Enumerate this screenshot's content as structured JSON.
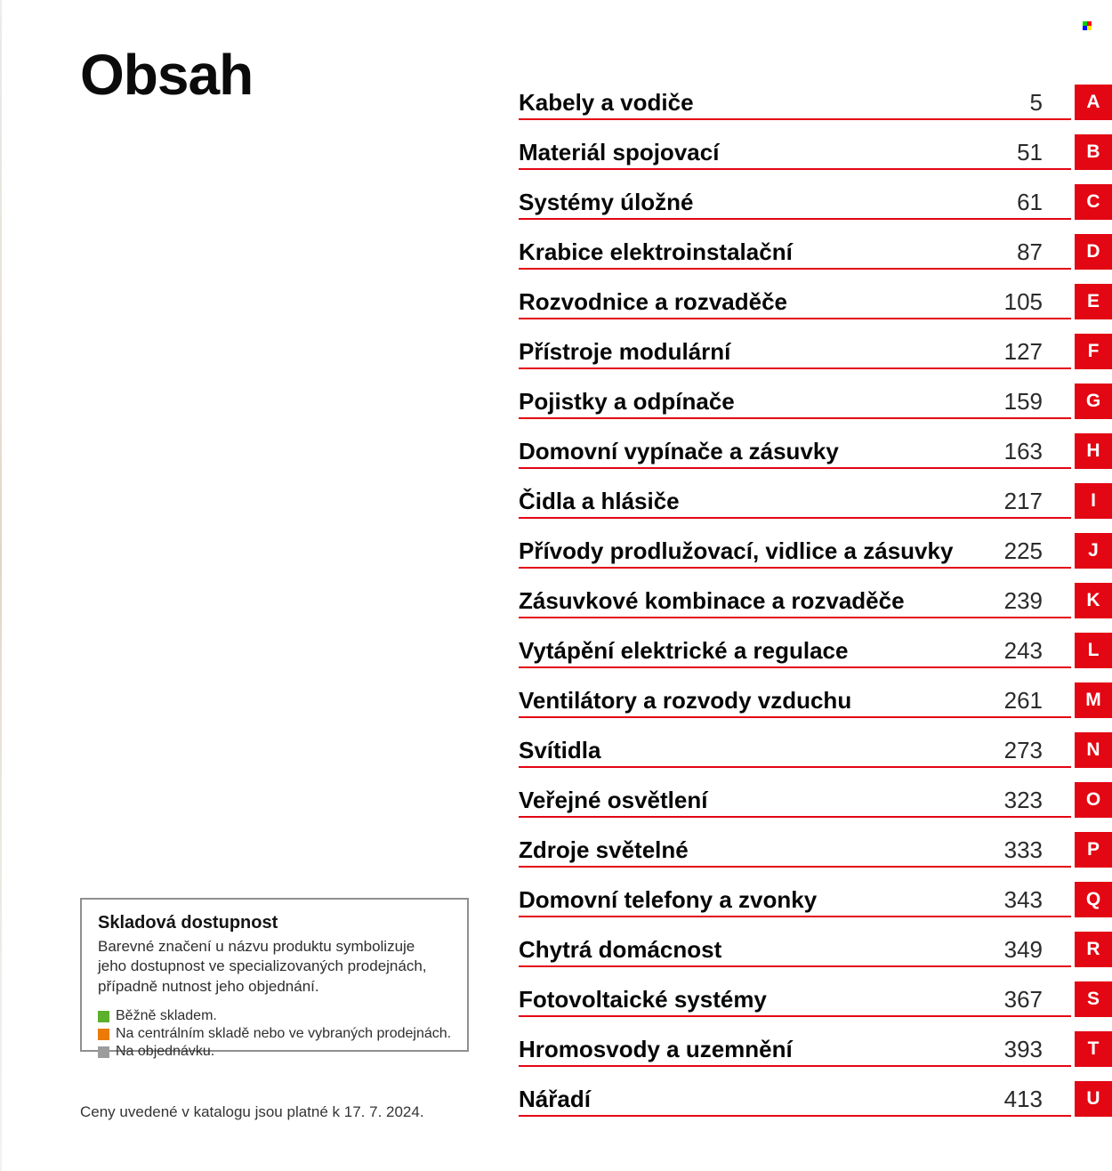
{
  "page": {
    "title": "Obsah",
    "footer_note": "Ceny uvedené v katalogu jsou platné k 17. 7. 2024."
  },
  "toc": {
    "items": [
      {
        "label": "Kabely a vodiče",
        "page": "5",
        "letter": "A"
      },
      {
        "label": "Materiál spojovací",
        "page": "51",
        "letter": "B"
      },
      {
        "label": "Systémy úložné",
        "page": "61",
        "letter": "C"
      },
      {
        "label": "Krabice elektroinstalační",
        "page": "87",
        "letter": "D"
      },
      {
        "label": "Rozvodnice a rozvaděče",
        "page": "105",
        "letter": "E"
      },
      {
        "label": "Přístroje modulární",
        "page": "127",
        "letter": "F"
      },
      {
        "label": "Pojistky a odpínače",
        "page": "159",
        "letter": "G"
      },
      {
        "label": "Domovní vypínače a zásuvky",
        "page": "163",
        "letter": "H"
      },
      {
        "label": "Čidla a hlásiče",
        "page": "217",
        "letter": "I"
      },
      {
        "label": "Přívody prodlužovací, vidlice a zásuvky",
        "page": "225",
        "letter": "J"
      },
      {
        "label": "Zásuvkové kombinace a rozvaděče",
        "page": "239",
        "letter": "K"
      },
      {
        "label": "Vytápění elektrické a regulace",
        "page": "243",
        "letter": "L"
      },
      {
        "label": "Ventilátory a rozvody vzduchu",
        "page": "261",
        "letter": "M"
      },
      {
        "label": "Svítidla",
        "page": "273",
        "letter": "N"
      },
      {
        "label": "Veřejné osvětlení",
        "page": "323",
        "letter": "O"
      },
      {
        "label": "Zdroje světelné",
        "page": "333",
        "letter": "P"
      },
      {
        "label": "Domovní telefony a zvonky",
        "page": "343",
        "letter": "Q"
      },
      {
        "label": "Chytrá domácnost",
        "page": "349",
        "letter": "R"
      },
      {
        "label": "Fotovoltaické systémy",
        "page": "367",
        "letter": "S"
      },
      {
        "label": "Hromosvody a uzemnění",
        "page": "393",
        "letter": "T"
      },
      {
        "label": "Nářadí",
        "page": "413",
        "letter": "U"
      }
    ]
  },
  "availability_box": {
    "title": "Skladová dostupnost",
    "description": "Barevné značení u názvu produktu symbolizuje jeho dostupnost ve specializovaných prodejnách, případně nutnost jeho objednání.",
    "items": [
      {
        "color": "#5bb02c",
        "label": "Běžně skladem."
      },
      {
        "color": "#ec7a08",
        "label": "Na centrálním skladě nebo ve vybraných prodejnách."
      },
      {
        "color": "#9c9c9c",
        "label": "Na objednávku."
      }
    ]
  },
  "colors": {
    "accent_red": "#e30613",
    "grid_icon": [
      "#00d200",
      "#ff0000",
      "#0014ff",
      "#ffe800"
    ]
  }
}
